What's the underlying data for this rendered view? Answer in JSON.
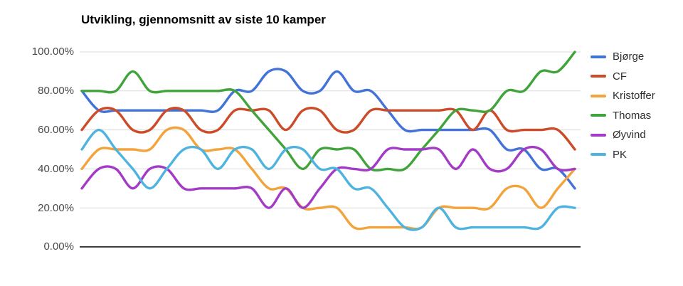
{
  "chart_data": {
    "type": "line",
    "title": "Utvikling, gjennomsnitt av siste 10 kamper",
    "smooth": true,
    "grid": true,
    "legend_position": "right",
    "background_color": "#ffffff",
    "grid_color": "#dbdbdb",
    "axis_line_color": "#3f3f3f",
    "y_axis": {
      "min": 0,
      "max": 100,
      "format": "percent",
      "tick_labels": [
        "100.00%",
        "80.00%",
        "60.00%",
        "40.00%",
        "20.00%",
        "0.00%"
      ],
      "tick_values": [
        100,
        80,
        60,
        40,
        20,
        0
      ]
    },
    "x_axis": {
      "tick_labels_visible": false,
      "points": 30
    },
    "series": [
      {
        "name": "Bjørge",
        "color": "#4372d8",
        "values": [
          80,
          70,
          70,
          70,
          70,
          70,
          70,
          70,
          70,
          80,
          80,
          90,
          90,
          80,
          80,
          90,
          80,
          80,
          70,
          60,
          60,
          60,
          60,
          60,
          60,
          50,
          50,
          40,
          40,
          30
        ]
      },
      {
        "name": "CF",
        "color": "#cc4b28",
        "values": [
          60,
          70,
          70,
          60,
          60,
          70,
          70,
          60,
          60,
          70,
          70,
          70,
          60,
          70,
          70,
          60,
          60,
          70,
          70,
          70,
          70,
          70,
          70,
          60,
          70,
          60,
          60,
          60,
          60,
          50
        ]
      },
      {
        "name": "Kristoffer",
        "color": "#f2a33c",
        "values": [
          40,
          50,
          50,
          50,
          50,
          60,
          60,
          50,
          50,
          50,
          40,
          30,
          30,
          20,
          20,
          20,
          10,
          10,
          10,
          10,
          10,
          20,
          20,
          20,
          20,
          30,
          30,
          20,
          30,
          40
        ]
      },
      {
        "name": "Thomas",
        "color": "#41a33c",
        "values": [
          80,
          80,
          80,
          90,
          80,
          80,
          80,
          80,
          80,
          80,
          70,
          60,
          50,
          40,
          50,
          50,
          50,
          40,
          40,
          40,
          50,
          60,
          70,
          70,
          70,
          80,
          80,
          90,
          90,
          100
        ]
      },
      {
        "name": "Øyvind",
        "color": "#a33bc6",
        "values": [
          30,
          40,
          40,
          30,
          40,
          40,
          30,
          30,
          30,
          30,
          30,
          20,
          30,
          20,
          30,
          40,
          40,
          40,
          50,
          50,
          50,
          50,
          40,
          50,
          40,
          40,
          50,
          50,
          40,
          40
        ]
      },
      {
        "name": "PK",
        "color": "#4fb3df",
        "values": [
          50,
          60,
          50,
          40,
          30,
          40,
          50,
          50,
          40,
          50,
          50,
          40,
          50,
          50,
          40,
          40,
          30,
          30,
          20,
          10,
          10,
          20,
          10,
          10,
          10,
          10,
          10,
          10,
          20,
          20
        ]
      }
    ]
  }
}
